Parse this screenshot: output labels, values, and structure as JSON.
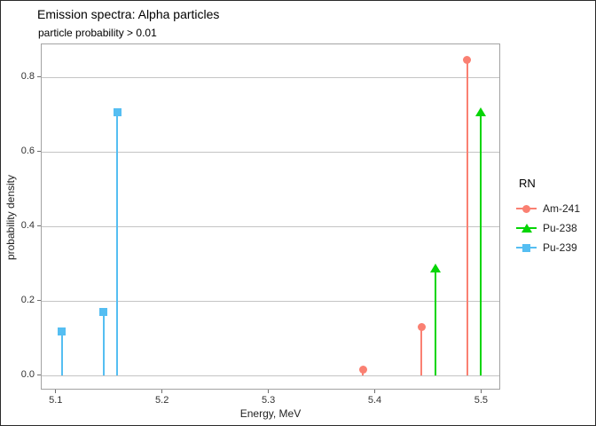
{
  "title": "Emission spectra: Alpha particles",
  "subtitle": "particle probability > 0.01",
  "axes": {
    "x_label": "Energy, MeV",
    "y_label": "probability density",
    "x_ticks": [
      5.1,
      5.2,
      5.3,
      5.4,
      5.5
    ],
    "y_ticks": [
      0.0,
      0.2,
      0.4,
      0.6,
      0.8
    ]
  },
  "legend": {
    "title": "RN",
    "items": [
      {
        "label": "Am-241",
        "marker": "circle",
        "color": "#FA8072"
      },
      {
        "label": "Pu-238",
        "marker": "triangle",
        "color": "#05D505"
      },
      {
        "label": "Pu-239",
        "marker": "square",
        "color": "#55BEF2"
      }
    ]
  },
  "colors": {
    "am241": "#FA8072",
    "pu238": "#05D505",
    "pu239": "#55BEF2",
    "gridline": "#C4C4C4",
    "panel_border": "#A3A3A3"
  },
  "chart_data": {
    "type": "scatter",
    "style": "stem",
    "title": "Emission spectra: Alpha particles",
    "subtitle": "particle probability > 0.01",
    "xlabel": "Energy, MeV",
    "ylabel": "probability density",
    "xlim": [
      5.086,
      5.518
    ],
    "ylim": [
      -0.04,
      0.89
    ],
    "grid": "horizontal-only",
    "legend_position": "right",
    "series": [
      {
        "name": "Am-241",
        "marker": "circle",
        "color": "#FA8072",
        "points": [
          {
            "x": 5.388,
            "y": 0.015
          },
          {
            "x": 5.443,
            "y": 0.131
          },
          {
            "x": 5.486,
            "y": 0.848
          }
        ]
      },
      {
        "name": "Pu-238",
        "marker": "triangle",
        "color": "#05D505",
        "points": [
          {
            "x": 5.456,
            "y": 0.29
          },
          {
            "x": 5.499,
            "y": 0.709
          }
        ]
      },
      {
        "name": "Pu-239",
        "marker": "square",
        "color": "#55BEF2",
        "points": [
          {
            "x": 5.105,
            "y": 0.118
          },
          {
            "x": 5.144,
            "y": 0.171
          },
          {
            "x": 5.157,
            "y": 0.708
          }
        ]
      }
    ]
  }
}
